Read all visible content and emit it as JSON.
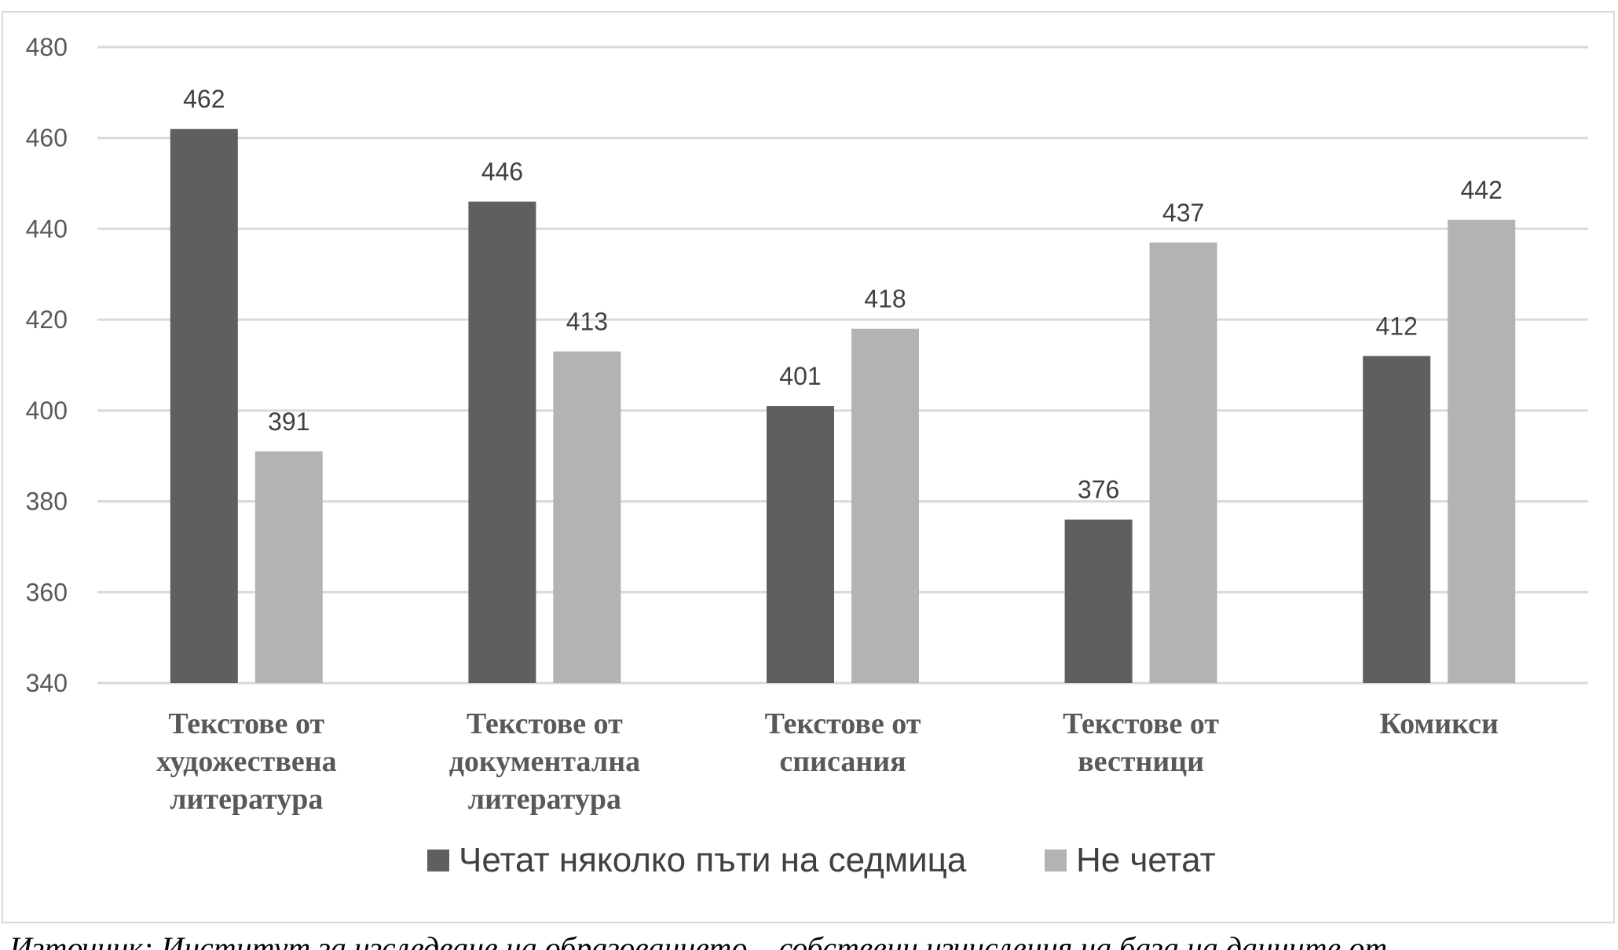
{
  "chart_data": {
    "type": "bar",
    "categories": [
      [
        "Текстове от",
        "художествена",
        "литература"
      ],
      [
        "Текстове от",
        "документална",
        "литература"
      ],
      [
        "Текстове от",
        "списания"
      ],
      [
        "Текстове от",
        "вестници"
      ],
      [
        "Комикси"
      ]
    ],
    "series": [
      {
        "name": "Четат няколко пъти на седмица",
        "color": "#5f5f5f",
        "values": [
          462,
          446,
          401,
          376,
          412
        ]
      },
      {
        "name": "Не четат",
        "color": "#b3b3b3",
        "values": [
          391,
          413,
          418,
          437,
          442
        ]
      }
    ],
    "ylim": [
      340,
      480
    ],
    "yticks": [
      340,
      360,
      380,
      400,
      420,
      440,
      460,
      480
    ],
    "grid": true,
    "legend_position": "bottom",
    "data_labels": true
  },
  "source_note": "Източник: Институт за изследване на образованието – собствени изчисления на база на данните от"
}
